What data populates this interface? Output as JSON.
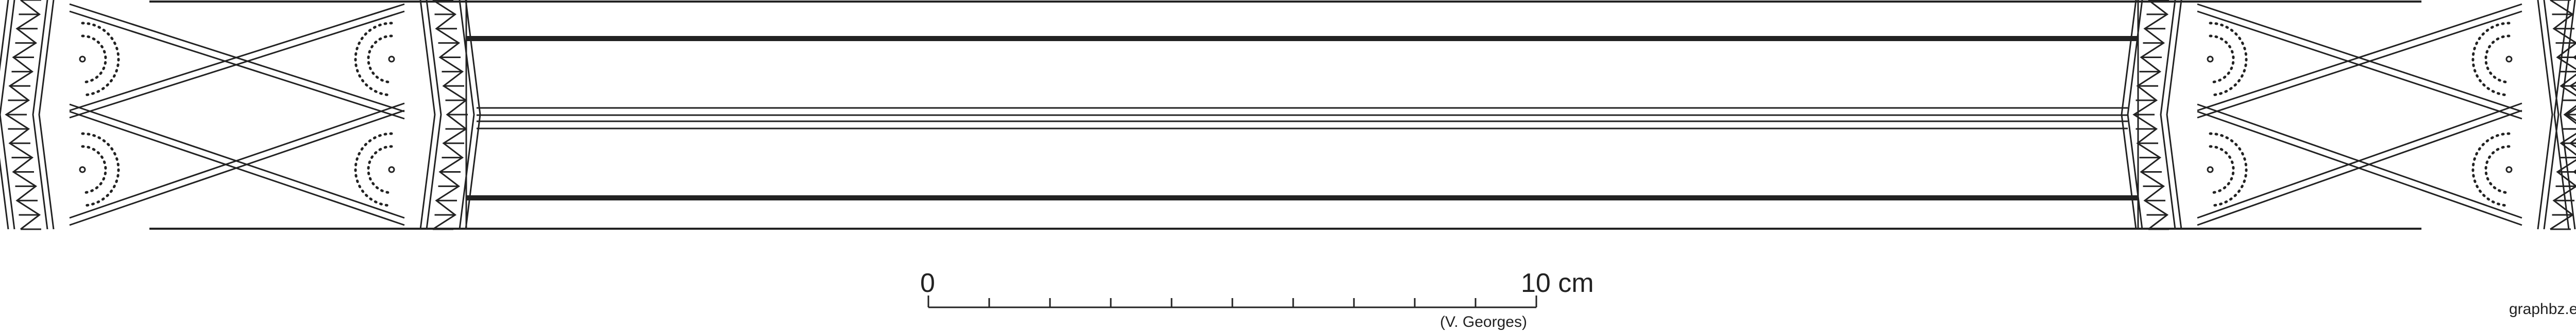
{
  "scale_bar": {
    "start_label": "0",
    "end_label": "10 cm",
    "subdivisions": 10,
    "author_credit": "(V. Georges)"
  },
  "watermark": "graphbz.eu",
  "colors": {
    "ink": "#222222",
    "background": "#ffffff"
  }
}
